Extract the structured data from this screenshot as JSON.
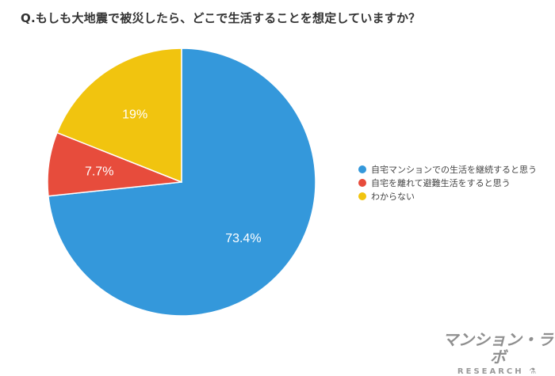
{
  "title": "Q.もしも大地震で被災したら、どこで生活することを想定していますか？",
  "chart_data": {
    "type": "pie",
    "title": "Q.もしも大地震で被災したら、どこで生活することを想定していますか？",
    "categories": [
      "自宅マンションでの生活を継続すると思う",
      "自宅を離れて避難生活をすると思う",
      "わからない"
    ],
    "values": [
      73.4,
      7.7,
      19
    ],
    "labels": [
      "73.4%",
      "7.7%",
      "19%"
    ],
    "colors": [
      "#3498db",
      "#e74c3c",
      "#f1c40f"
    ],
    "legend_position": "right",
    "start_angle": "12 o'clock, clockwise"
  },
  "legend": {
    "items": [
      {
        "label": "自宅マンションでの生活を継続すると思う",
        "color": "#3498db"
      },
      {
        "label": "自宅を離れて避難生活をすると思う",
        "color": "#e74c3c"
      },
      {
        "label": "わからない",
        "color": "#f1c40f"
      }
    ]
  },
  "logo": {
    "main": "マンション・ラボ",
    "sub": "RESEARCH"
  }
}
